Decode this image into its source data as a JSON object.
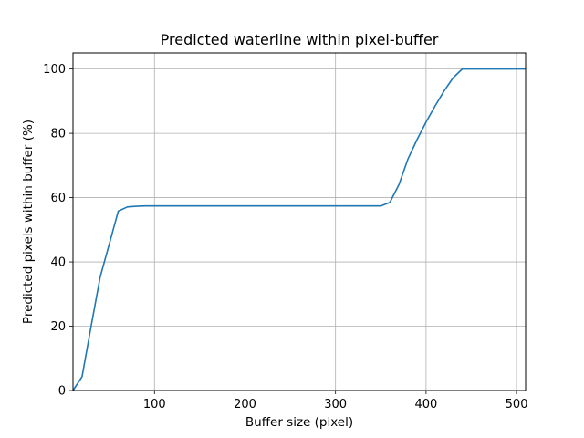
{
  "chart_data": {
    "type": "line",
    "title": "Predicted waterline within pixel-buffer",
    "xlabel": "Buffer size (pixel)",
    "ylabel": "Predicted pixels within buffer (%)",
    "xlim": [
      10,
      510
    ],
    "ylim": [
      0,
      105
    ],
    "xticks": [
      100,
      200,
      300,
      400,
      500
    ],
    "yticks": [
      0,
      20,
      40,
      60,
      80,
      100
    ],
    "grid": true,
    "series": [
      {
        "color": "#1f77b4",
        "x": [
          10,
          20,
          30,
          40,
          50,
          60,
          70,
          80,
          90,
          100,
          150,
          200,
          250,
          300,
          350,
          360,
          370,
          380,
          390,
          400,
          410,
          420,
          430,
          440,
          450,
          500,
          510
        ],
        "y": [
          0,
          4.3,
          20,
          35.3,
          45.5,
          55.8,
          57.1,
          57.3,
          57.4,
          57.4,
          57.4,
          57.4,
          57.4,
          57.4,
          57.4,
          58.5,
          64,
          72,
          78,
          83.5,
          88.5,
          93.2,
          97.3,
          100,
          100,
          100,
          100
        ]
      }
    ]
  }
}
